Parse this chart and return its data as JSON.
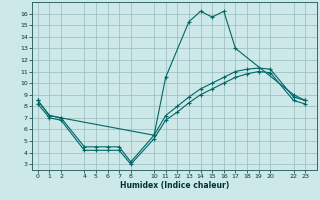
{
  "xlabel": "Humidex (Indice chaleur)",
  "bg_color": "#cce8e8",
  "grid_color": "#99bbbb",
  "line_color": "#006666",
  "xlim": [
    -0.5,
    24.0
  ],
  "ylim": [
    2.5,
    17.0
  ],
  "xticks": [
    0,
    1,
    2,
    4,
    5,
    6,
    7,
    8,
    10,
    11,
    12,
    13,
    14,
    15,
    16,
    17,
    18,
    19,
    20,
    22,
    23
  ],
  "yticks": [
    3,
    4,
    5,
    6,
    7,
    8,
    9,
    10,
    11,
    12,
    13,
    14,
    15,
    16
  ],
  "curve1_x": [
    0,
    1,
    2,
    10,
    11,
    13,
    14,
    15,
    16,
    17,
    22,
    23
  ],
  "curve1_y": [
    8.5,
    7.2,
    7.0,
    5.5,
    10.5,
    15.3,
    16.2,
    15.7,
    16.2,
    13.0,
    9.0,
    8.5
  ],
  "curve2_x": [
    0,
    1,
    2,
    4,
    5,
    6,
    7,
    8,
    10,
    11,
    12,
    13,
    14,
    15,
    16,
    17,
    18,
    19,
    20,
    22,
    23
  ],
  "curve2_y": [
    8.5,
    7.2,
    7.0,
    4.5,
    4.5,
    4.5,
    4.5,
    3.2,
    5.5,
    7.2,
    8.0,
    8.8,
    9.5,
    10.0,
    10.5,
    11.0,
    11.2,
    11.3,
    11.2,
    8.8,
    8.5
  ],
  "curve3_x": [
    0,
    1,
    2,
    4,
    5,
    6,
    7,
    8,
    10,
    11,
    12,
    13,
    14,
    15,
    16,
    17,
    18,
    19,
    20,
    22,
    23
  ],
  "curve3_y": [
    8.2,
    7.0,
    6.8,
    4.2,
    4.2,
    4.2,
    4.2,
    3.0,
    5.2,
    6.8,
    7.5,
    8.3,
    9.0,
    9.5,
    10.0,
    10.5,
    10.8,
    11.0,
    10.9,
    8.5,
    8.2
  ]
}
